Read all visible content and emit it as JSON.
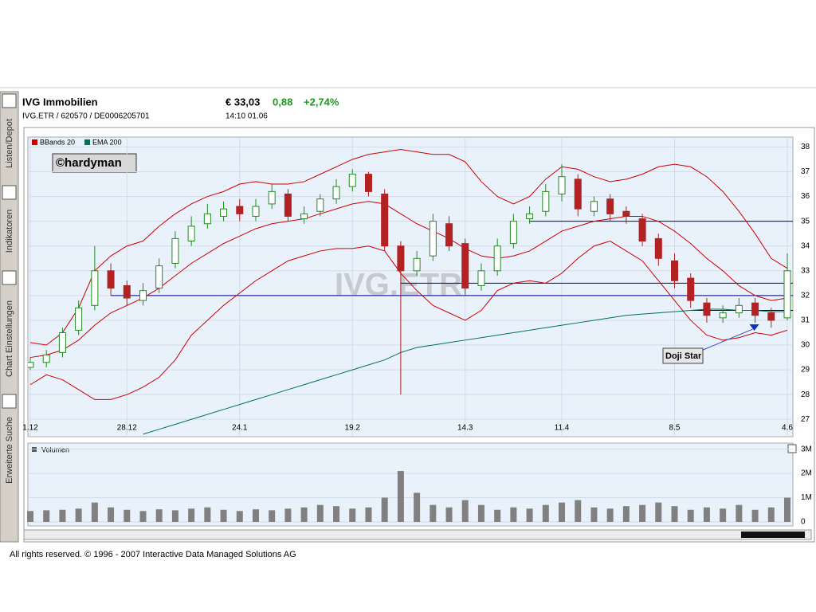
{
  "header": {
    "name": "IVG Immobilien",
    "ids": "IVG.ETR  /  620570  /  DE0006205701",
    "price": "€ 33,03",
    "change": "0,88",
    "change_pct": "+2,74%",
    "time": "14:10   01.06"
  },
  "sidebar": {
    "tabs": [
      "Listen/Depot",
      "Indikatoren",
      "Chart Einstellungen",
      "Erweiterte Suche"
    ]
  },
  "footer": "All rights reserved. © 1996 - 2007 Interactive Data Managed Solutions AG",
  "chart_data": {
    "type": "candlestick",
    "watermark": "IVG.ETR",
    "author": "©hardyman",
    "categories": [
      "1.12",
      null,
      null,
      null,
      null,
      null,
      "28.12",
      null,
      null,
      null,
      null,
      null,
      null,
      "24.1",
      null,
      null,
      null,
      null,
      null,
      null,
      "19.2",
      null,
      null,
      null,
      null,
      null,
      null,
      "14.3",
      null,
      null,
      null,
      null,
      null,
      "11.4",
      null,
      null,
      null,
      null,
      null,
      null,
      "8.5",
      null,
      null,
      null,
      null,
      null,
      null,
      "4.6"
    ],
    "open": [
      29.1,
      29.3,
      29.7,
      30.6,
      31.6,
      33.0,
      32.4,
      31.8,
      32.3,
      33.3,
      34.2,
      34.9,
      35.2,
      35.6,
      35.2,
      35.7,
      36.1,
      35.1,
      35.4,
      35.9,
      36.4,
      36.9,
      36.1,
      34.0,
      33.0,
      33.6,
      34.9,
      34.1,
      32.4,
      33.0,
      34.1,
      35.1,
      35.4,
      36.1,
      36.7,
      35.4,
      35.9,
      35.4,
      35.1,
      34.3,
      33.4,
      32.7,
      31.7,
      31.1,
      31.3,
      31.7,
      31.3,
      31.1
    ],
    "high": [
      29.5,
      29.8,
      30.7,
      31.8,
      34.0,
      33.3,
      32.6,
      32.5,
      33.5,
      34.6,
      35.2,
      35.7,
      35.8,
      35.9,
      35.9,
      36.5,
      36.3,
      35.6,
      36.1,
      36.7,
      37.1,
      37.0,
      36.3,
      34.2,
      33.8,
      35.3,
      35.2,
      34.3,
      33.3,
      34.3,
      35.3,
      35.6,
      36.5,
      37.3,
      36.9,
      36.0,
      36.1,
      35.6,
      35.3,
      34.5,
      33.7,
      32.9,
      31.9,
      31.6,
      31.9,
      31.9,
      31.5,
      33.7
    ],
    "low": [
      29.0,
      29.1,
      29.5,
      30.4,
      31.4,
      32.0,
      31.6,
      31.6,
      32.1,
      33.1,
      34.0,
      34.7,
      35.0,
      35.0,
      35.0,
      35.5,
      35.0,
      34.9,
      35.2,
      35.7,
      36.2,
      36.0,
      33.8,
      28.0,
      32.8,
      33.4,
      33.8,
      32.0,
      32.2,
      32.8,
      33.9,
      34.9,
      35.2,
      35.8,
      35.2,
      35.2,
      35.0,
      34.9,
      34.0,
      33.2,
      32.3,
      31.5,
      30.9,
      30.9,
      31.1,
      30.9,
      30.7,
      31.0
    ],
    "close": [
      29.3,
      29.6,
      30.5,
      31.5,
      33.0,
      32.3,
      31.9,
      32.2,
      33.2,
      34.3,
      34.8,
      35.3,
      35.5,
      35.3,
      35.6,
      36.2,
      35.2,
      35.3,
      35.9,
      36.4,
      36.9,
      36.2,
      34.0,
      33.0,
      33.5,
      35.0,
      34.0,
      32.3,
      33.0,
      34.0,
      35.0,
      35.3,
      36.2,
      36.8,
      35.5,
      35.8,
      35.3,
      35.2,
      34.2,
      33.5,
      32.6,
      31.8,
      31.2,
      31.3,
      31.6,
      31.2,
      31.0,
      33.0
    ],
    "up_color": "#228b22",
    "down_color": "#b22222",
    "series": [
      {
        "name": "BBands 20",
        "color": "#cc0000",
        "values": [
          30.1,
          30.0,
          30.5,
          31.5,
          33.0,
          33.6,
          34.0,
          34.2,
          34.8,
          35.3,
          35.7,
          36.0,
          36.2,
          36.5,
          36.6,
          36.5,
          36.5,
          36.6,
          36.9,
          37.2,
          37.5,
          37.7,
          37.8,
          37.9,
          37.8,
          37.7,
          37.7,
          37.4,
          36.6,
          36.0,
          35.7,
          36.0,
          36.7,
          37.2,
          37.1,
          36.8,
          36.6,
          36.7,
          36.9,
          37.2,
          37.3,
          37.2,
          36.8,
          36.2,
          35.4,
          34.5,
          33.5,
          33.1
        ]
      },
      {
        "name": null,
        "color": "#cc0000",
        "values": [
          29.5,
          29.6,
          29.8,
          30.2,
          30.8,
          31.3,
          31.6,
          31.9,
          32.3,
          32.8,
          33.3,
          33.7,
          34.1,
          34.4,
          34.7,
          34.9,
          35.0,
          35.1,
          35.3,
          35.5,
          35.7,
          35.8,
          35.7,
          35.3,
          34.9,
          34.6,
          34.3,
          33.9,
          33.6,
          33.5,
          33.6,
          33.8,
          34.2,
          34.6,
          34.8,
          35.0,
          35.1,
          35.2,
          35.2,
          35.0,
          34.6,
          34.1,
          33.5,
          33.0,
          32.4,
          32.0,
          31.8,
          31.9
        ]
      },
      {
        "name": null,
        "color": "#cc0000",
        "values": [
          28.4,
          28.8,
          28.6,
          28.2,
          27.8,
          27.8,
          28.0,
          28.3,
          28.7,
          29.4,
          30.4,
          31.0,
          31.6,
          32.1,
          32.6,
          33.0,
          33.4,
          33.6,
          33.8,
          33.9,
          33.9,
          34.0,
          33.8,
          32.9,
          32.2,
          31.6,
          31.3,
          31.0,
          31.4,
          32.2,
          32.5,
          32.6,
          32.5,
          32.9,
          33.5,
          34.0,
          34.2,
          33.8,
          33.4,
          32.6,
          31.8,
          31.0,
          30.4,
          30.2,
          30.3,
          30.5,
          30.4,
          30.6
        ]
      },
      {
        "name": "EMA 200",
        "color": "#007060",
        "values": [
          null,
          null,
          null,
          null,
          null,
          null,
          null,
          26.4,
          26.6,
          26.8,
          27.0,
          27.2,
          27.4,
          27.6,
          27.8,
          28.0,
          28.2,
          28.4,
          28.6,
          28.8,
          29.0,
          29.2,
          29.4,
          29.7,
          29.9,
          30.0,
          30.1,
          30.2,
          30.3,
          30.4,
          30.5,
          30.6,
          30.7,
          30.8,
          30.9,
          31.0,
          31.1,
          31.2,
          31.25,
          31.3,
          31.35,
          31.4,
          31.45,
          31.45,
          31.4,
          31.4,
          31.35,
          31.35
        ]
      }
    ],
    "hlines": [
      {
        "value": 35,
        "start": 31,
        "color": "#00008b"
      },
      {
        "value": 32.5,
        "start": 23,
        "color": "#00008b"
      },
      {
        "value": 32,
        "start": 5,
        "color": "#00008b"
      },
      {
        "value": 31.4,
        "start": 41,
        "color": "#000000"
      }
    ],
    "annotation": "Doji Star",
    "ylim": [
      26.3,
      38.4
    ],
    "yticks": [
      27,
      28,
      29,
      30,
      31,
      32,
      33,
      34,
      35,
      36,
      37,
      38
    ],
    "grid": true,
    "volume": {
      "title": "Volumen",
      "color": "#808080",
      "values": [
        450000,
        480000,
        500000,
        550000,
        800000,
        600000,
        500000,
        450000,
        520000,
        480000,
        550000,
        600000,
        500000,
        450000,
        520000,
        480000,
        550000,
        600000,
        700000,
        650000,
        550000,
        600000,
        1000000,
        2100000,
        1200000,
        700000,
        600000,
        900000,
        700000,
        500000,
        600000,
        550000,
        700000,
        800000,
        900000,
        600000,
        550000,
        650000,
        700000,
        800000,
        650000,
        500000,
        600000,
        550000,
        700000,
        500000,
        600000,
        1000000
      ],
      "ylim": [
        0,
        3250000
      ],
      "yticks": [
        0,
        {
          "value": 1000000,
          "label": "1M"
        },
        {
          "value": 2000000,
          "label": "2M"
        },
        {
          "value": 3000000,
          "label": "3M"
        }
      ]
    }
  }
}
